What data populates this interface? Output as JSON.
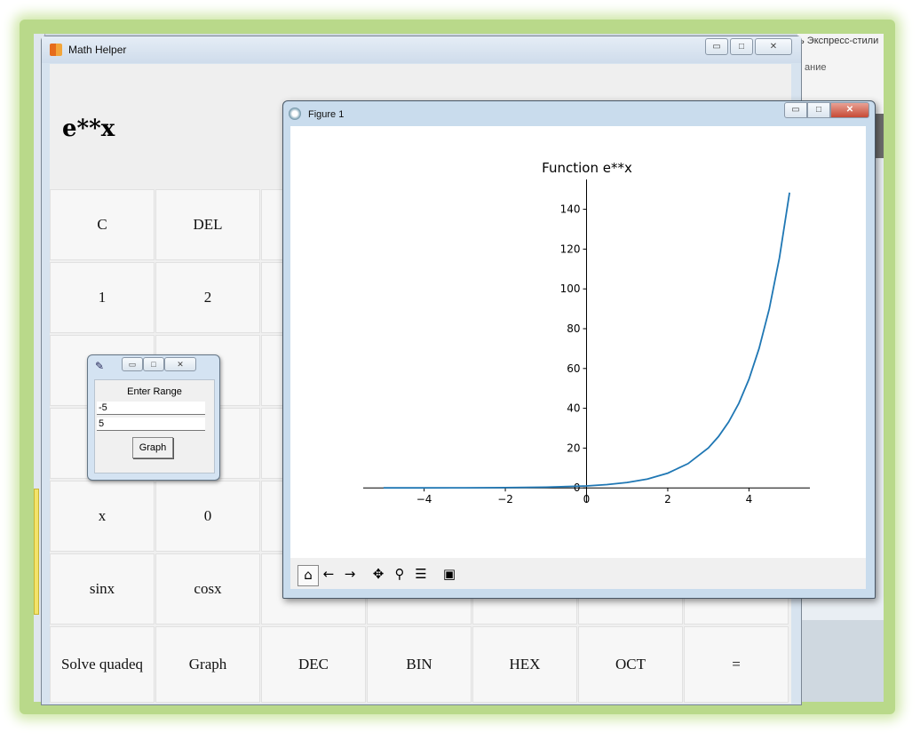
{
  "background_app": {
    "ribbon_text": "ь Экспресс-стили",
    "ribbon_subtext": "ание"
  },
  "math_helper": {
    "title": "Math Helper",
    "display": "e**x",
    "keys": [
      "C",
      "DEL",
      "",
      "",
      "",
      "",
      "",
      "1",
      "2",
      "",
      "",
      "",
      "",
      "",
      "",
      "",
      "",
      "",
      "",
      "",
      "",
      "",
      "",
      "",
      "",
      "",
      "",
      "",
      "x",
      "0",
      "",
      "",
      "",
      "",
      "",
      "sinx",
      "cosx",
      "",
      "",
      "",
      "",
      "",
      "Solve quadeq",
      "Graph",
      "DEC",
      "BIN",
      "HEX",
      "OCT",
      "="
    ]
  },
  "figure_window": {
    "title": "Figure 1",
    "toolbar_icons": [
      "home-icon",
      "back-icon",
      "forward-icon",
      "pan-icon",
      "zoom-icon",
      "configure-subplots-icon",
      "save-icon"
    ]
  },
  "range_dialog": {
    "label": "Enter Range",
    "min_value": "-5",
    "max_value": "5",
    "button_label": "Graph"
  },
  "chart_data": {
    "type": "line",
    "title": "Function e**x",
    "xlabel": "",
    "ylabel": "",
    "xlim": [
      -5.5,
      5.5
    ],
    "ylim": [
      -7.5,
      155
    ],
    "xticks": [
      -4,
      -2,
      0,
      2,
      4
    ],
    "yticks": [
      0,
      20,
      40,
      60,
      80,
      100,
      120,
      140
    ],
    "xtick_labels": [
      "−4",
      "−2",
      "0",
      "2",
      "4"
    ],
    "ytick_labels": [
      "0",
      "20",
      "40",
      "60",
      "80",
      "100",
      "120",
      "140"
    ],
    "series": [
      {
        "color": "#1f77b4",
        "x": [
          -5,
          -4,
          -3,
          -2,
          -1,
          0,
          0.5,
          1,
          1.5,
          2,
          2.5,
          3,
          3.25,
          3.5,
          3.75,
          4,
          4.25,
          4.5,
          4.75,
          5
        ],
        "y": [
          0.007,
          0.018,
          0.05,
          0.135,
          0.368,
          1,
          1.65,
          2.72,
          4.48,
          7.39,
          12.18,
          20.09,
          25.79,
          33.12,
          42.52,
          54.6,
          70.11,
          90.02,
          115.58,
          148.41
        ]
      }
    ],
    "grid": false
  }
}
